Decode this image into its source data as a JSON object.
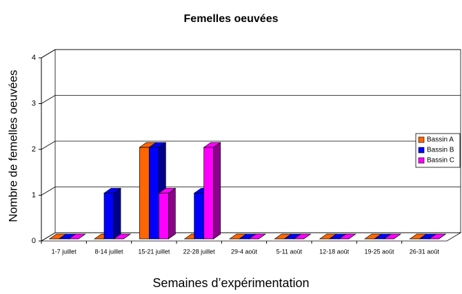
{
  "chart_data": {
    "type": "bar3d",
    "title": "Femelles oeuvées",
    "x_label": "Semaines d’expérimentation",
    "y_label": "Nombre de femelles oeuvées",
    "categories": [
      "1-7 juillet",
      "8-14 juillet",
      "15-21 juillet",
      "22-28 juillet",
      "29-4 août",
      "5-11 août",
      "12-18 août",
      "19-25 août",
      "26-31 août"
    ],
    "series": [
      {
        "name": "Bassin A",
        "color": "#ff6600",
        "values": [
          0,
          0,
          2,
          0,
          0,
          0,
          0,
          0,
          0
        ]
      },
      {
        "name": "Bassin B",
        "color": "#0000ff",
        "values": [
          0,
          1,
          2,
          1,
          0,
          0,
          0,
          0,
          0
        ]
      },
      {
        "name": "Bassin C",
        "color": "#ff00ff",
        "values": [
          0,
          0,
          1,
          2,
          0,
          0,
          0,
          0,
          0
        ]
      }
    ],
    "ylim": [
      0,
      4
    ],
    "yticks": [
      0,
      1,
      2,
      3,
      4
    ],
    "grid": true,
    "legend": "right"
  }
}
